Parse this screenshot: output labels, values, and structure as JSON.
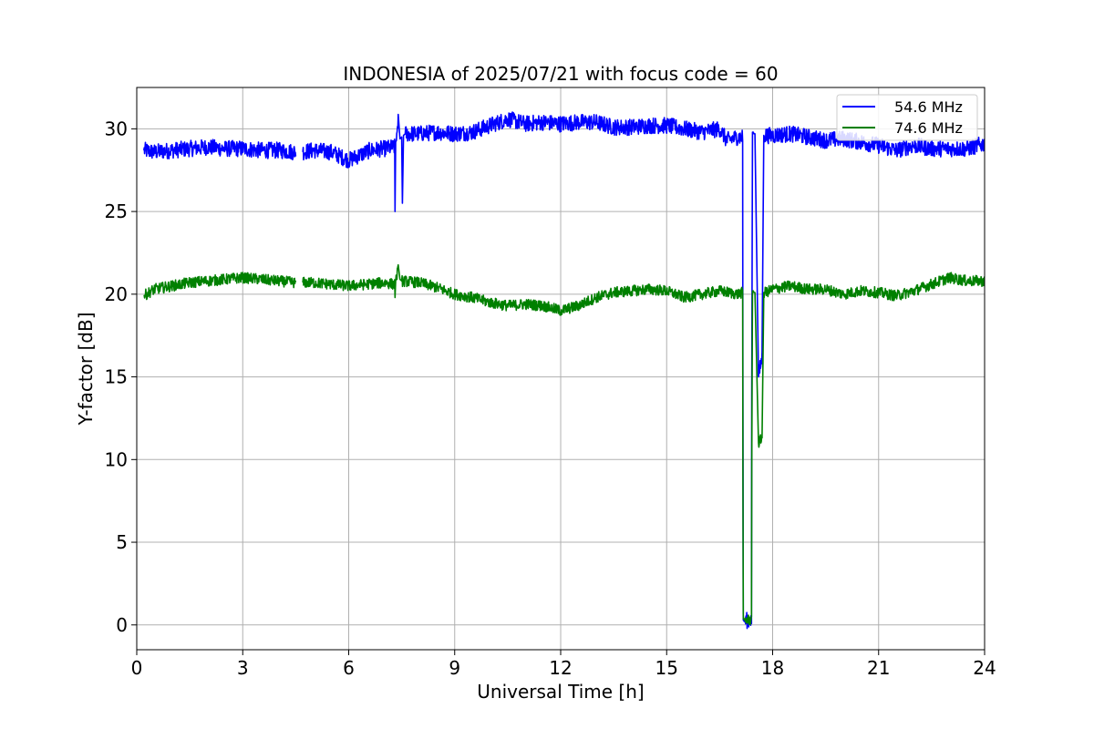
{
  "chart_data": {
    "type": "line",
    "title": "INDONESIA of 2025/07/21 with focus code = 60",
    "xlabel": "Universal Time [h]",
    "ylabel": "Y-factor [dB]",
    "xlim": [
      0,
      24
    ],
    "ylim": [
      -1.5,
      32.5
    ],
    "xticks": [
      0,
      3,
      6,
      9,
      12,
      15,
      18,
      21,
      24
    ],
    "yticks": [
      0,
      5,
      10,
      15,
      20,
      25,
      30
    ],
    "grid": true,
    "legend_position": "top-right",
    "series": [
      {
        "name": "54.6 MHz",
        "color": "#0000ff",
        "noise_amplitude": 0.9,
        "x": [
          0.2,
          0.5,
          1.0,
          1.5,
          2.0,
          2.5,
          3.0,
          3.5,
          4.0,
          4.5,
          4.6,
          4.7,
          5.0,
          5.5,
          6.0,
          6.3,
          6.6,
          7.0,
          7.3,
          7.31,
          7.33,
          7.35,
          7.4,
          7.45,
          7.5,
          7.52,
          7.55,
          7.6,
          8.0,
          8.5,
          9.0,
          9.5,
          10.0,
          10.5,
          11.0,
          11.5,
          12.0,
          12.5,
          13.0,
          13.5,
          14.0,
          14.5,
          15.0,
          15.5,
          16.0,
          16.5,
          16.7,
          17.0,
          17.15,
          17.16,
          17.17,
          17.2,
          17.3,
          17.4,
          17.41,
          17.43,
          17.45,
          17.47,
          17.5,
          17.6,
          17.7,
          17.75,
          17.8,
          18.0,
          18.5,
          19.0,
          19.5,
          20.0,
          20.5,
          21.0,
          21.5,
          22.0,
          22.5,
          23.0,
          23.5,
          24.0
        ],
        "y": [
          28.7,
          28.6,
          28.7,
          28.8,
          28.9,
          28.8,
          28.8,
          28.7,
          28.7,
          28.6,
          null,
          28.6,
          28.7,
          28.6,
          28.1,
          28.4,
          28.7,
          28.8,
          28.9,
          25.0,
          29.2,
          29.3,
          30.7,
          29.4,
          29.5,
          25.5,
          29.6,
          29.7,
          29.7,
          29.8,
          29.7,
          29.8,
          30.2,
          30.6,
          30.3,
          30.4,
          30.3,
          30.4,
          30.4,
          30.1,
          30.1,
          30.2,
          30.2,
          30.0,
          29.8,
          30.0,
          29.3,
          29.5,
          29.5,
          13.5,
          0.3,
          0.2,
          0.3,
          0.3,
          13.8,
          29.8,
          29.8,
          29.7,
          29.7,
          15.0,
          16.2,
          29.6,
          29.6,
          29.6,
          29.7,
          29.5,
          29.3,
          29.4,
          29.2,
          29.0,
          28.7,
          29.0,
          28.8,
          28.8,
          28.8,
          29.1
        ]
      },
      {
        "name": "74.6 MHz",
        "color": "#008000",
        "noise_amplitude": 0.6,
        "x": [
          0.2,
          0.5,
          1.0,
          1.5,
          2.0,
          2.5,
          3.0,
          3.5,
          4.0,
          4.5,
          4.6,
          4.7,
          5.0,
          5.5,
          6.0,
          6.5,
          7.0,
          7.3,
          7.31,
          7.33,
          7.4,
          7.45,
          7.5,
          8.0,
          8.5,
          9.0,
          9.5,
          10.0,
          10.5,
          11.0,
          11.5,
          12.0,
          12.5,
          13.0,
          13.5,
          14.0,
          14.5,
          15.0,
          15.5,
          16.0,
          16.5,
          17.0,
          17.15,
          17.16,
          17.17,
          17.2,
          17.3,
          17.4,
          17.41,
          17.43,
          17.45,
          17.47,
          17.5,
          17.6,
          17.7,
          17.75,
          17.8,
          18.0,
          18.5,
          19.0,
          19.5,
          20.0,
          20.5,
          21.0,
          21.5,
          22.0,
          22.5,
          23.0,
          23.5,
          24.0
        ],
        "y": [
          19.9,
          20.3,
          20.5,
          20.7,
          20.8,
          20.9,
          21.0,
          20.9,
          20.8,
          20.7,
          null,
          20.7,
          20.7,
          20.6,
          20.5,
          20.6,
          20.7,
          20.6,
          19.8,
          20.8,
          21.5,
          20.9,
          20.8,
          20.7,
          20.4,
          20.0,
          19.8,
          19.5,
          19.3,
          19.4,
          19.3,
          19.0,
          19.3,
          19.8,
          20.1,
          20.2,
          20.3,
          20.2,
          19.8,
          20.0,
          20.2,
          20.0,
          20.1,
          9.4,
          0.4,
          0.3,
          0.3,
          0.3,
          9.6,
          20.2,
          20.2,
          20.1,
          20.1,
          11.0,
          11.3,
          20.1,
          20.1,
          20.3,
          20.5,
          20.3,
          20.3,
          20.0,
          20.2,
          20.1,
          19.9,
          20.2,
          20.6,
          21.0,
          20.8,
          20.8
        ]
      }
    ]
  }
}
